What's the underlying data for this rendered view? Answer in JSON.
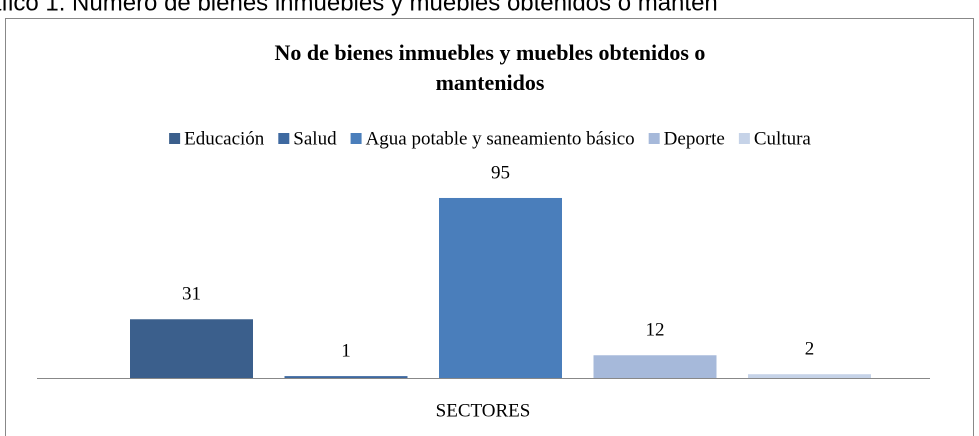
{
  "caption": "áfico 1. Número de bienes inmuebles y muebles obtenidos o manten",
  "chart_data": {
    "type": "bar",
    "title": [
      "No de bienes inmuebles y muebles  obtenidos o",
      "mantenidos"
    ],
    "x_label": "SECTORES",
    "ylim": [
      0,
      100
    ],
    "series": [
      {
        "name": "Educación",
        "color": "#3b5f8c",
        "values": [
          31
        ]
      },
      {
        "name": "Salud",
        "color": "#3e69a0",
        "values": [
          1
        ]
      },
      {
        "name": "Agua potable y saneamiento básico",
        "color": "#4a7ebb",
        "values": [
          95
        ]
      },
      {
        "name": "Deporte",
        "color": "#a6b9da",
        "values": [
          12
        ]
      },
      {
        "name": "Cultura",
        "color": "#c6d3e8",
        "values": [
          2
        ]
      }
    ]
  }
}
